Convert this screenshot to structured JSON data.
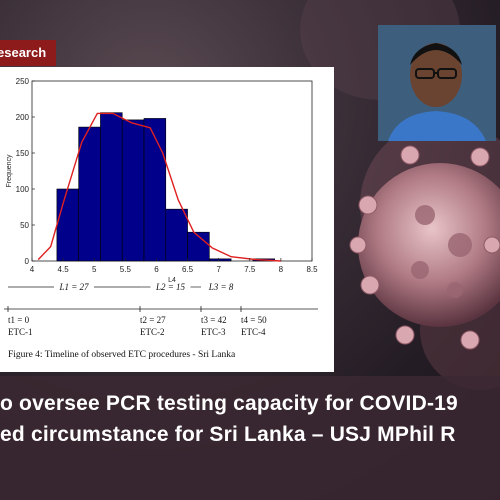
{
  "tag": {
    "label": "Research",
    "visible_text": "esearch"
  },
  "figure": {
    "caption": "Figure 4: Timeline of observed ETC procedures - Sri Lanka",
    "chart_data": {
      "type": "bar",
      "xlabel": "L4",
      "ylabel": "Frequency",
      "xlim": [
        4,
        8.5
      ],
      "ylim": [
        0,
        250
      ],
      "x_ticks": [
        "4",
        "4.5",
        "5",
        "5.5",
        "6",
        "6.5",
        "7",
        "7.5",
        "8",
        "8.5"
      ],
      "y_ticks": [
        "0",
        "50",
        "100",
        "150",
        "200",
        "250"
      ],
      "bins": [
        {
          "from": 4.4,
          "to": 4.75,
          "value": 100
        },
        {
          "from": 4.75,
          "to": 5.1,
          "value": 186
        },
        {
          "from": 5.1,
          "to": 5.45,
          "value": 206
        },
        {
          "from": 5.45,
          "to": 5.8,
          "value": 196
        },
        {
          "from": 5.8,
          "to": 6.15,
          "value": 198
        },
        {
          "from": 6.15,
          "to": 6.5,
          "value": 72
        },
        {
          "from": 6.5,
          "to": 6.85,
          "value": 40
        },
        {
          "from": 6.85,
          "to": 7.2,
          "value": 3
        },
        {
          "from": 7.2,
          "to": 7.55,
          "value": 0
        },
        {
          "from": 7.55,
          "to": 7.9,
          "value": 3
        }
      ],
      "density_curve": [
        {
          "x": 4.1,
          "y": 2
        },
        {
          "x": 4.3,
          "y": 20
        },
        {
          "x": 4.5,
          "y": 80
        },
        {
          "x": 4.8,
          "y": 165
        },
        {
          "x": 5.05,
          "y": 205
        },
        {
          "x": 5.3,
          "y": 205
        },
        {
          "x": 5.6,
          "y": 192
        },
        {
          "x": 5.9,
          "y": 185
        },
        {
          "x": 6.1,
          "y": 150
        },
        {
          "x": 6.35,
          "y": 85
        },
        {
          "x": 6.6,
          "y": 40
        },
        {
          "x": 6.9,
          "y": 18
        },
        {
          "x": 7.2,
          "y": 6
        },
        {
          "x": 7.6,
          "y": 2
        },
        {
          "x": 8.0,
          "y": 0
        }
      ],
      "bar_color": "#00008b",
      "curve_color": "#e02020"
    },
    "timeline": {
      "lengths": [
        "L1 = 27",
        "L2 = 15",
        "L3 = 8"
      ],
      "times": [
        "t1 = 0",
        "t2 = 27",
        "t3 = 42",
        "t4 = 50"
      ],
      "etc": [
        "ETC-1",
        "ETC-2",
        "ETC-3",
        "ETC-4"
      ]
    }
  },
  "headline": {
    "line1": "o oversee PCR testing capacity for COVID-19",
    "line2": "ed circumstance for Sri Lanka – USJ MPhil R"
  },
  "colors": {
    "tag_bg": "#8e1b1b",
    "headline_bg": "#3c2832",
    "text": "#ffffff"
  }
}
